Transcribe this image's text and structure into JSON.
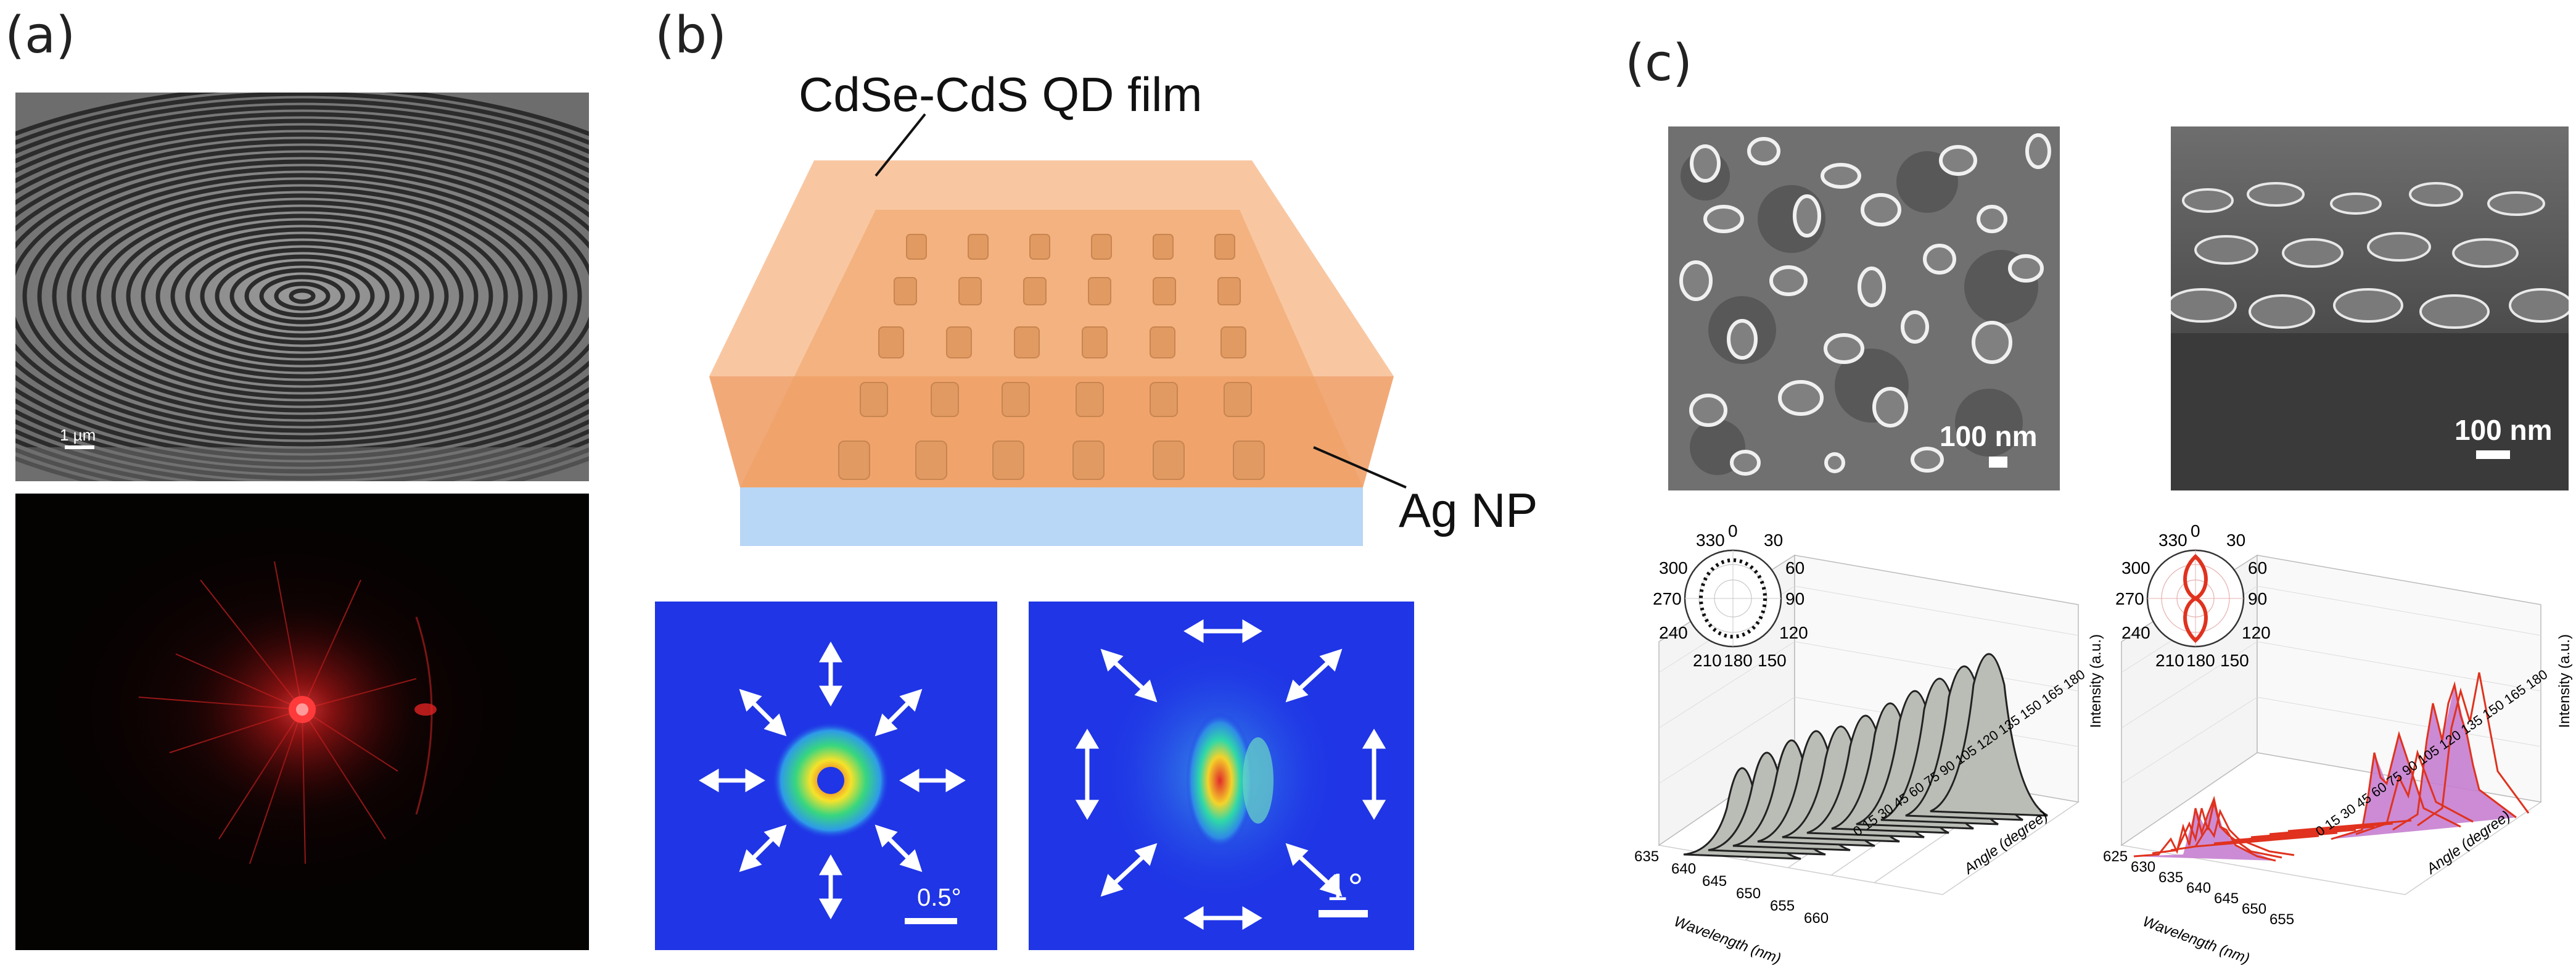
{
  "panels": {
    "a": {
      "label": "(a)",
      "scale_bar": "1 µm"
    },
    "b": {
      "label": "(b)",
      "film_label": "CdSe-CdS QD film",
      "np_label": "Ag NP",
      "scale_left": "0.5°",
      "scale_right": "1°"
    },
    "c": {
      "label": "(c)",
      "sem_left_scale": "100 nm",
      "sem_right_scale": "100 nm",
      "polar_ticks": [
        "330",
        "0",
        "30",
        "300",
        "60",
        "270",
        "90",
        "240",
        "120",
        "210",
        "180",
        "150"
      ],
      "plot_left": {
        "xlabel": "Wavelength (nm)",
        "ylabel": "Angle (degree)",
        "zlabel": "Intensity (a.u.)",
        "wl_ticks": [
          "635",
          "640",
          "645",
          "650",
          "655",
          "660"
        ],
        "angle_ticks": [
          "0",
          "15",
          "30",
          "45",
          "60",
          "75",
          "90",
          "105",
          "120",
          "135",
          "150",
          "165",
          "180"
        ]
      },
      "plot_right": {
        "xlabel": "Wavelength (nm)",
        "ylabel": "Angle (degree)",
        "zlabel": "Intensity (a.u.)",
        "wl_ticks": [
          "625",
          "630",
          "635",
          "640",
          "645",
          "650",
          "655"
        ],
        "angle_ticks": [
          "0",
          "15",
          "30",
          "45",
          "60",
          "75",
          "90",
          "105",
          "120",
          "135",
          "150",
          "165",
          "180"
        ]
      }
    }
  },
  "colors": {
    "orange": "#f6b07e",
    "orange_dark": "#e8934e",
    "substrate": "#b8d6f5",
    "map_bg": "#1f35e6",
    "trace_red": "#e0321e",
    "fill_pink": "#c77fd0",
    "fill_gray": "#b9bdb6"
  }
}
